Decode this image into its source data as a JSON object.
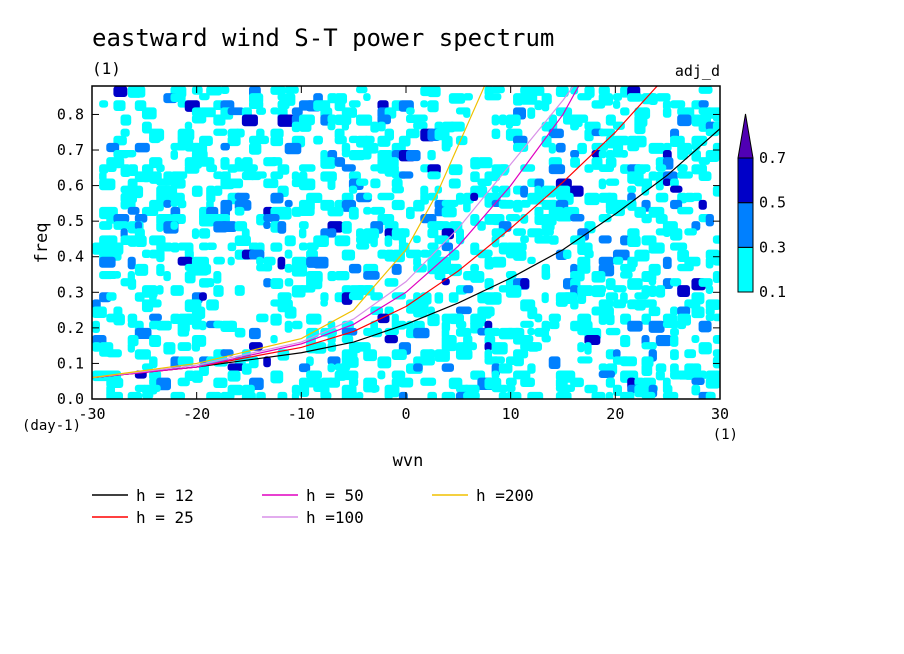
{
  "chart_data": {
    "type": "heatmap",
    "title": "eastward wind S-T power spectrum",
    "subtitle_left": "(1)",
    "subtitle_right": "adj_d",
    "xlabel": "wvn",
    "ylabel": "freq",
    "x_unit": "(1)",
    "y_unit": "(day-1)",
    "xlim": [
      -30,
      30
    ],
    "ylim": [
      0,
      0.88
    ],
    "x_ticks": [
      "-30",
      "-20",
      "-10",
      "0",
      "10",
      "20",
      "30"
    ],
    "x_tick_values": [
      -30,
      -20,
      -10,
      0,
      10,
      20,
      30
    ],
    "y_ticks": [
      "0.0",
      "0.1",
      "0.2",
      "0.3",
      "0.4",
      "0.5",
      "0.6",
      "0.7",
      "0.8"
    ],
    "y_tick_values": [
      0,
      0.1,
      0.2,
      0.3,
      0.4,
      0.5,
      0.6,
      0.7,
      0.8
    ],
    "colorbar": {
      "levels": [
        "0.1",
        "0.3",
        "0.5",
        "0.7"
      ],
      "level_values": [
        0.1,
        0.3,
        0.5,
        0.7
      ],
      "colors": [
        "#00ffff",
        "#0080ff",
        "#0000c8",
        "#5000b4"
      ]
    },
    "series": [
      {
        "name": "h = 12",
        "color": "#000000",
        "x": [
          -30,
          -20,
          -10,
          -5,
          0,
          5,
          10,
          15,
          20,
          25,
          30
        ],
        "y": [
          0.06,
          0.09,
          0.13,
          0.16,
          0.21,
          0.27,
          0.34,
          0.42,
          0.52,
          0.63,
          0.76
        ]
      },
      {
        "name": "h = 25",
        "color": "#ff0000",
        "x": [
          -30,
          -20,
          -10,
          -5,
          0,
          5,
          10,
          15,
          20,
          24
        ],
        "y": [
          0.06,
          0.09,
          0.145,
          0.19,
          0.26,
          0.36,
          0.48,
          0.61,
          0.75,
          0.88
        ]
      },
      {
        "name": "h = 50",
        "color": "#e000c0",
        "x": [
          -30,
          -20,
          -10,
          -5,
          0,
          5,
          10,
          15,
          16.5
        ],
        "y": [
          0.06,
          0.09,
          0.155,
          0.21,
          0.3,
          0.43,
          0.6,
          0.8,
          0.88
        ]
      },
      {
        "name": "h =100",
        "color": "#d890e8",
        "x": [
          -30,
          -20,
          -10,
          -5,
          0,
          5,
          10,
          15,
          16
        ],
        "y": [
          0.06,
          0.095,
          0.16,
          0.225,
          0.33,
          0.48,
          0.66,
          0.84,
          0.88
        ]
      },
      {
        "name": "h =200",
        "color": "#f0c000",
        "x": [
          -30,
          -20,
          -10,
          -5,
          0,
          3,
          6,
          7.5
        ],
        "y": [
          0.06,
          0.1,
          0.17,
          0.25,
          0.42,
          0.58,
          0.78,
          0.88
        ]
      }
    ],
    "legend": [
      {
        "label": "h = 12",
        "color": "#000000"
      },
      {
        "label": "h = 25",
        "color": "#ff0000"
      },
      {
        "label": "h = 50",
        "color": "#e000c0"
      },
      {
        "label": "h =100",
        "color": "#d890e8"
      },
      {
        "label": "h =200",
        "color": "#f0c000"
      }
    ]
  }
}
